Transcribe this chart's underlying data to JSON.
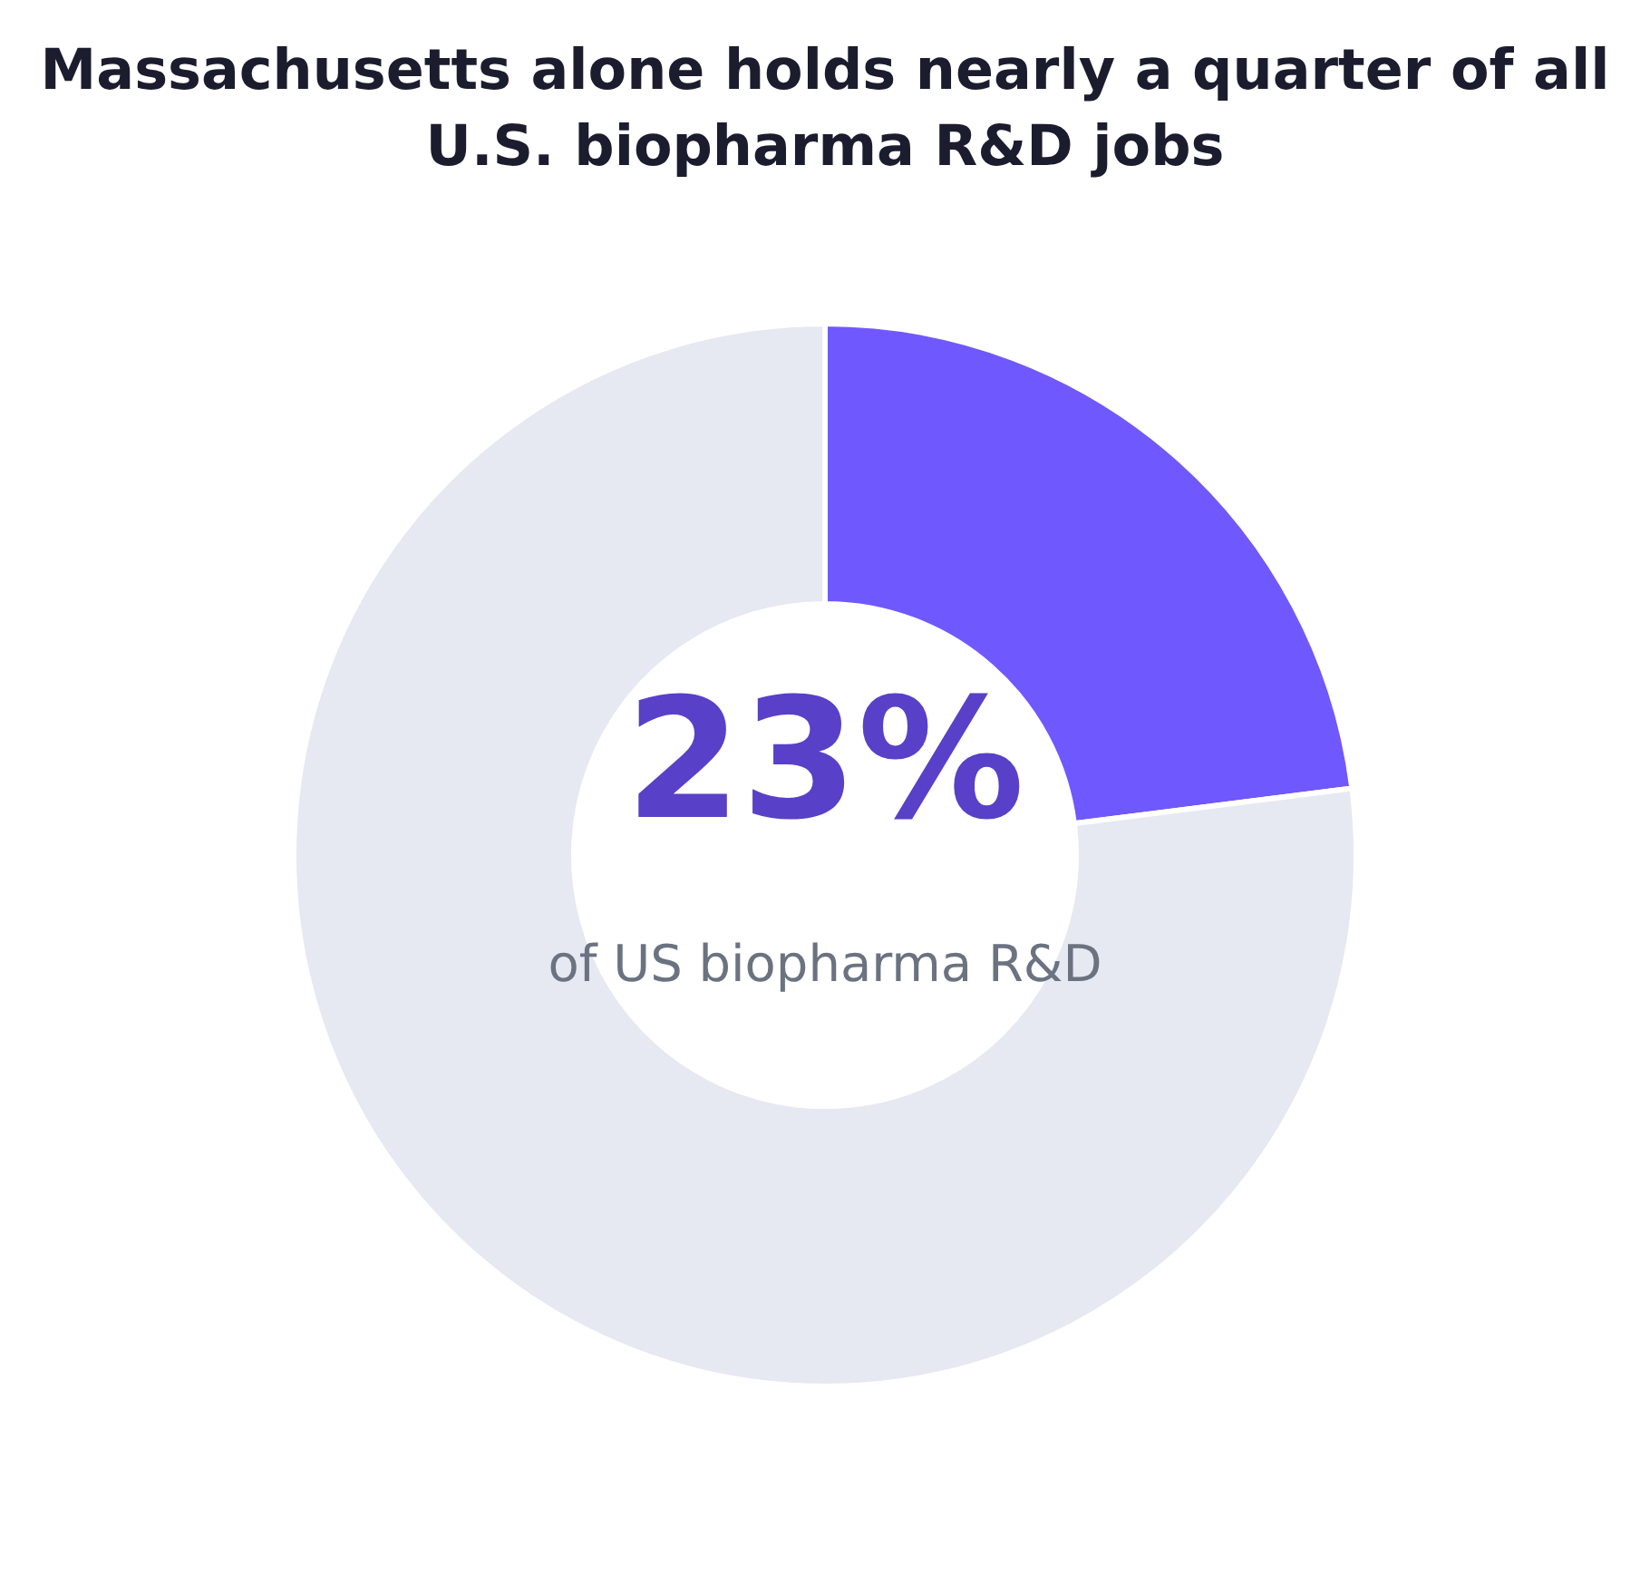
{
  "chart_data": {
    "type": "donut",
    "title": "Massachusetts alone holds nearly a quarter of all U.S. biopharma R&D jobs",
    "categories": [
      null,
      null
    ],
    "values": [
      23,
      77
    ],
    "colors": [
      "#7058ff",
      "#e6e8f2"
    ],
    "annotations": [
      "23%",
      "of US biopharma R&D"
    ],
    "legend": false
  }
}
